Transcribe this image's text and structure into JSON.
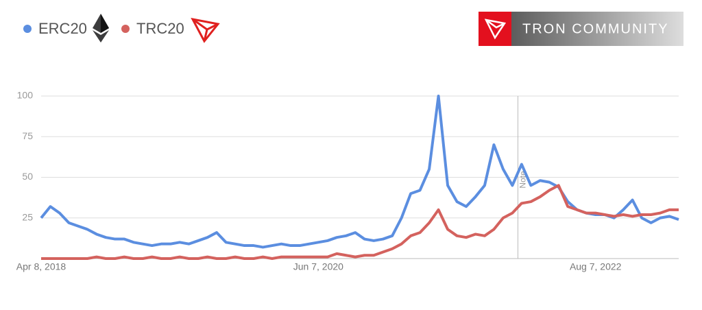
{
  "chart_data": {
    "type": "line",
    "badge": "TRON COMMUNITY",
    "note": "Note",
    "categories": [
      "Apr 8, 2018",
      null,
      null,
      null,
      null,
      null,
      null,
      null,
      null,
      null,
      null,
      null,
      null,
      null,
      null,
      null,
      null,
      null,
      null,
      null,
      null,
      null,
      null,
      null,
      null,
      null,
      null,
      null,
      null,
      null,
      "Jun 7, 2020",
      null,
      null,
      null,
      null,
      null,
      null,
      null,
      null,
      null,
      null,
      null,
      null,
      null,
      null,
      null,
      null,
      null,
      null,
      null,
      null,
      null,
      null,
      null,
      null,
      null,
      null,
      null,
      null,
      null,
      "Aug 7, 2022",
      null,
      null,
      null,
      null,
      null,
      null,
      null,
      null,
      null
    ],
    "series": [
      {
        "name": "ERC20",
        "color": "#5b8ee0",
        "values": [
          25,
          32,
          28,
          22,
          20,
          18,
          15,
          13,
          12,
          12,
          10,
          9,
          8,
          9,
          9,
          10,
          9,
          11,
          13,
          16,
          10,
          9,
          8,
          8,
          7,
          8,
          9,
          8,
          8,
          9,
          10,
          11,
          13,
          14,
          16,
          12,
          11,
          12,
          14,
          25,
          40,
          42,
          55,
          100,
          45,
          35,
          32,
          38,
          45,
          70,
          55,
          45,
          58,
          45,
          48,
          47,
          44,
          35,
          30,
          28,
          27,
          27,
          25,
          30,
          36,
          25,
          22,
          25,
          26,
          24
        ]
      },
      {
        "name": "TRC20",
        "color": "#d4625e",
        "values": [
          0,
          0,
          0,
          0,
          0,
          0,
          1,
          0,
          0,
          1,
          0,
          0,
          1,
          0,
          0,
          1,
          0,
          0,
          1,
          0,
          0,
          1,
          0,
          0,
          1,
          0,
          1,
          1,
          1,
          1,
          1,
          1,
          3,
          2,
          1,
          2,
          2,
          4,
          6,
          9,
          14,
          16,
          22,
          30,
          18,
          14,
          13,
          15,
          14,
          18,
          25,
          28,
          34,
          35,
          38,
          42,
          45,
          32,
          30,
          28,
          28,
          27,
          26,
          27,
          26,
          27,
          27,
          28,
          30,
          30
        ]
      }
    ],
    "ylim": [
      0,
      100
    ],
    "yticks": [
      25,
      50,
      75,
      100
    ],
    "grid": true
  }
}
